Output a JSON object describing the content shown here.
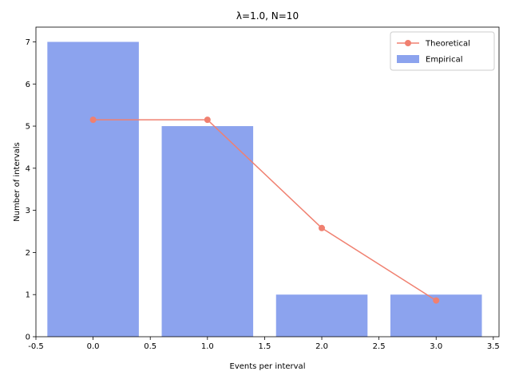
{
  "chart_data": {
    "type": "bar",
    "title": "λ=1.0, N=10",
    "xlabel": "Events per interval",
    "ylabel": "Number of intervals",
    "xlim": [
      -0.5,
      3.55
    ],
    "ylim": [
      0,
      7.35
    ],
    "x_ticks": [
      "-0.5",
      "0.0",
      "0.5",
      "1.0",
      "1.5",
      "2.0",
      "2.5",
      "3.0",
      "3.5"
    ],
    "y_ticks": [
      "0",
      "1",
      "2",
      "3",
      "4",
      "5",
      "6",
      "7"
    ],
    "grid": false,
    "legend_position": "top-right",
    "series": [
      {
        "name": "Empirical",
        "kind": "bar",
        "color": "#8ca3ee",
        "x": [
          0,
          1,
          2,
          3
        ],
        "values": [
          7,
          5,
          1,
          1
        ],
        "bar_width": 0.8
      },
      {
        "name": "Theoretical",
        "kind": "line",
        "color": "#f08070",
        "x": [
          0,
          1,
          2,
          3
        ],
        "values": [
          5.15,
          5.15,
          2.58,
          0.86
        ]
      }
    ]
  }
}
